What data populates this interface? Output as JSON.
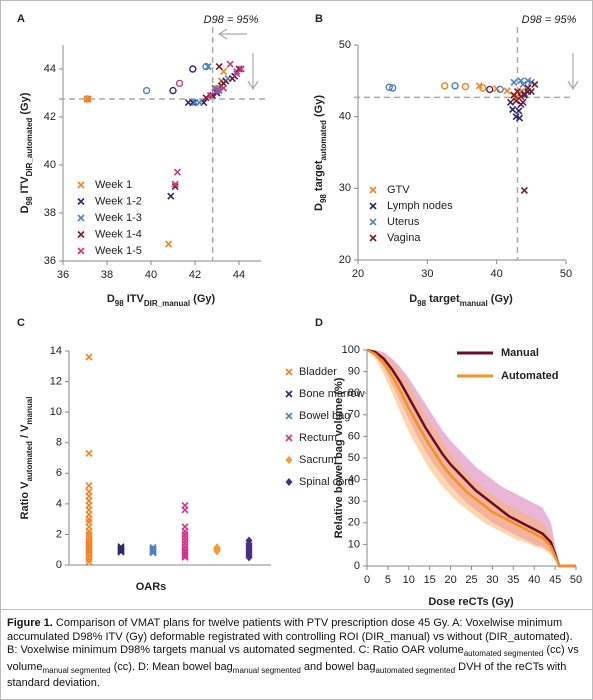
{
  "chart_data": [
    {
      "type": "scatter",
      "label": "A",
      "annotation": "D98 = 95%",
      "vline": 42.8,
      "hline": 42.75,
      "xlabel": [
        {
          "text": "D"
        },
        {
          "text": "98",
          "sub": true
        },
        {
          "text": " ITV"
        },
        {
          "text": "DIR_manual",
          "sub": true
        },
        {
          "text": " (Gy)"
        }
      ],
      "ylabel": [
        {
          "text": "D"
        },
        {
          "text": "98",
          "sub": true
        },
        {
          "text": " ITV"
        },
        {
          "text": "DIR_automated",
          "sub": true
        },
        {
          "text": " (Gy)"
        }
      ],
      "xlim": [
        36,
        45
      ],
      "xticks": [
        36,
        38,
        40,
        42,
        44
      ],
      "ylim": [
        36,
        45
      ],
      "yticks": [
        36,
        38,
        40,
        42,
        44
      ],
      "series": [
        {
          "name": "Week 1",
          "color": "#f58220",
          "x": [
            37.1,
            37.15,
            43.3,
            43.2,
            40.8,
            43.0
          ],
          "y": [
            42.75,
            42.75,
            43.9,
            43.5,
            36.7,
            43.2
          ],
          "circle_x": [
            37.1
          ],
          "circle_y": [
            42.75
          ]
        },
        {
          "name": "Week 1-2",
          "color": "#2b2b6e",
          "x": [
            40.9,
            41.7,
            41.9,
            42.4,
            43.0,
            43.4,
            43.8,
            43.2
          ],
          "y": [
            38.7,
            42.6,
            42.6,
            42.6,
            43.0,
            43.5,
            43.7,
            43.3
          ],
          "circle_x": [
            41.0,
            41.9
          ],
          "circle_y": [
            43.1,
            44.0
          ]
        },
        {
          "name": "Week 1-3",
          "color": "#4f81bd",
          "x": [
            42.6,
            42.2,
            42.9,
            43.5,
            43.9,
            43.1,
            42.0
          ],
          "y": [
            44.1,
            42.6,
            43.2,
            43.6,
            43.9,
            43.1,
            42.6
          ],
          "circle_x": [
            39.8,
            42.5
          ],
          "circle_y": [
            43.1,
            44.1
          ]
        },
        {
          "name": "Week 1-4",
          "color": "#7a1c2e",
          "x": [
            41.1,
            43.1,
            42.5,
            43.3,
            43.7,
            44.0,
            42.8
          ],
          "y": [
            39.1,
            44.1,
            42.8,
            43.4,
            43.6,
            44.0,
            42.9
          ],
          "circle_x": [],
          "circle_y": []
        },
        {
          "name": "Week 1-5",
          "color": "#d2378c",
          "x": [
            41.2,
            41.1,
            43.6,
            43.3,
            43.9,
            44.1,
            42.7,
            43.0
          ],
          "y": [
            39.7,
            39.2,
            44.2,
            43.2,
            43.8,
            44.0,
            42.9,
            43.1
          ],
          "circle_x": [
            41.3
          ],
          "circle_y": [
            43.4
          ]
        }
      ]
    },
    {
      "type": "scatter",
      "label": "B",
      "annotation": "D98 = 95%",
      "vline": 43,
      "hline": 42.7,
      "xlabel": [
        {
          "text": "D"
        },
        {
          "text": "98",
          "sub": true
        },
        {
          "text": " target"
        },
        {
          "text": "manual",
          "sub": true
        },
        {
          "text": " (Gy)"
        }
      ],
      "ylabel": [
        {
          "text": "D"
        },
        {
          "text": "98",
          "sub": true
        },
        {
          "text": " target"
        },
        {
          "text": "automated",
          "sub": true
        },
        {
          "text": " (Gy)"
        }
      ],
      "xlim": [
        20,
        50
      ],
      "xticks": [
        20,
        30,
        40,
        50
      ],
      "ylim": [
        20,
        50
      ],
      "yticks": [
        20,
        30,
        40,
        50
      ],
      "series": [
        {
          "name": "GTV",
          "color": "#f58220",
          "x": [
            37.5,
            40,
            41.5,
            42.4,
            43.5,
            44.5,
            43
          ],
          "y": [
            44.3,
            43.9,
            43.6,
            43,
            43.5,
            44,
            42.8
          ],
          "circle_x": [
            32.5,
            35.5,
            38
          ],
          "circle_y": [
            44.3,
            44.2,
            44
          ]
        },
        {
          "name": "Lymph nodes",
          "color": "#2b2b6e",
          "x": [
            42.3,
            42.8,
            43.2,
            42,
            43.5,
            44,
            44.5,
            43.3
          ],
          "y": [
            41,
            40,
            40.8,
            42,
            41.7,
            43,
            43.5,
            39.8
          ],
          "circle_x": [],
          "circle_y": []
        },
        {
          "name": "Uterus",
          "color": "#4f81bd",
          "x": [
            42.5,
            43.5,
            44.5,
            45,
            43.8
          ],
          "y": [
            44.8,
            45,
            45,
            44.8,
            44.5
          ],
          "circle_x": [
            24.5,
            25,
            34,
            40.5
          ],
          "circle_y": [
            44.1,
            44,
            44.3,
            43.8
          ]
        },
        {
          "name": "Vagina",
          "color": "#7a1c2e",
          "x": [
            44,
            42.5,
            43,
            43.5,
            44,
            44.5,
            45,
            42.8,
            43.8,
            45.5
          ],
          "y": [
            29.7,
            43,
            43.5,
            42.8,
            43.2,
            44,
            43.5,
            42.2,
            42,
            44.5
          ],
          "circle_x": [
            39
          ],
          "circle_y": [
            43.8
          ]
        }
      ]
    },
    {
      "type": "strip",
      "label": "C",
      "xlabel": [
        {
          "text": "OARs"
        }
      ],
      "ylabel": [
        {
          "text": "Ratio V"
        },
        {
          "text": "automated",
          "sub": true
        },
        {
          "text": " / V"
        },
        {
          "text": "manual",
          "sub": true
        }
      ],
      "ylim": [
        0,
        14
      ],
      "yticks": [
        0,
        2,
        4,
        6,
        8,
        10,
        12,
        14
      ],
      "series": [
        {
          "name": "Bladder",
          "color": "#f58220",
          "marker": "x",
          "values": [
            13.6,
            7.3,
            5.2,
            4.8,
            4.5,
            4.2,
            3.9,
            3.6,
            3.3,
            3,
            2.8,
            2.5,
            2.2,
            2,
            1.8,
            1.6,
            1.4,
            1.3,
            1.2,
            1.1,
            1,
            0.9,
            0.8,
            0.6,
            0.4,
            0.2
          ]
        },
        {
          "name": "Bone marrow",
          "color": "#2b2b6e",
          "marker": "x",
          "values": [
            1.2,
            1.1,
            1.05,
            1,
            0.95,
            0.9,
            0.85
          ]
        },
        {
          "name": "Bowel bag",
          "color": "#4f81bd",
          "marker": "x",
          "values": [
            1.15,
            1.05,
            1,
            0.95,
            0.9,
            0.85,
            0.8
          ]
        },
        {
          "name": "Rectum",
          "color": "#d2378c",
          "marker": "x",
          "values": [
            3.9,
            3.6,
            2.5,
            2.2,
            2,
            1.8,
            1.6,
            1.4,
            1.2,
            1,
            0.9,
            0.8,
            0.7,
            0.6,
            0.5
          ]
        },
        {
          "name": "Sacrum",
          "color": "#f79a2e",
          "marker": "diamond",
          "values": [
            1.15,
            1.1,
            1.05,
            1,
            0.95,
            0.9
          ]
        },
        {
          "name": "Spinal cord",
          "color": "#4b2d83",
          "marker": "diamond",
          "values": [
            1.6,
            1.4,
            1.3,
            1.2,
            1.1,
            1,
            0.9,
            0.8,
            0.7,
            0.6,
            0.5
          ]
        }
      ]
    },
    {
      "type": "line",
      "label": "D",
      "xlabel": [
        {
          "text": "Dose reCTs (Gy)"
        }
      ],
      "ylabel": [
        {
          "text": "Relative bowel bag volume (%)"
        }
      ],
      "xlim": [
        0,
        50
      ],
      "xticks": [
        0,
        5,
        10,
        15,
        20,
        25,
        30,
        35,
        40,
        45,
        50
      ],
      "ylim": [
        0,
        100
      ],
      "yticks": [
        0,
        10,
        20,
        30,
        40,
        50,
        60,
        70,
        80,
        90,
        100
      ],
      "x": [
        0,
        2,
        4,
        6,
        8,
        10,
        12,
        14,
        16,
        18,
        20,
        22,
        24,
        26,
        28,
        30,
        32,
        34,
        36,
        38,
        40,
        42,
        44,
        46,
        48,
        50
      ],
      "series": [
        {
          "name": "Manual",
          "color": "#6b0d25",
          "band_color": "#d77ab8",
          "values": [
            100,
            99,
            96,
            91,
            85,
            78,
            71,
            64,
            58,
            52,
            47,
            43,
            39,
            35,
            32,
            29,
            26,
            23,
            21,
            19,
            17,
            15,
            11,
            0,
            0,
            0
          ],
          "lower": [
            100,
            97,
            92,
            84,
            76,
            68,
            60,
            53,
            47,
            42,
            37,
            33,
            29,
            26,
            23,
            20,
            18,
            16,
            14,
            12,
            10,
            9,
            6,
            0,
            0,
            0
          ],
          "upper": [
            100,
            100,
            99,
            96,
            92,
            87,
            81,
            75,
            69,
            63,
            58,
            54,
            50,
            46,
            43,
            40,
            37,
            35,
            33,
            31,
            29,
            27,
            20,
            0,
            0,
            0
          ]
        },
        {
          "name": "Automated",
          "color": "#f7901e",
          "band_color": "#fbb36e",
          "values": [
            100,
            98,
            94,
            88,
            81,
            73,
            66,
            59,
            53,
            47,
            42,
            38,
            34,
            31,
            28,
            25,
            23,
            21,
            19,
            17,
            15,
            13,
            9,
            0,
            0,
            0
          ],
          "lower": [
            100,
            96,
            89,
            80,
            71,
            62,
            55,
            48,
            42,
            37,
            33,
            29,
            26,
            23,
            20,
            18,
            16,
            14,
            12,
            11,
            9,
            8,
            5,
            0,
            0,
            0
          ],
          "upper": [
            100,
            100,
            98,
            95,
            90,
            84,
            77,
            70,
            64,
            58,
            52,
            47,
            43,
            39,
            36,
            33,
            30,
            28,
            26,
            24,
            22,
            20,
            14,
            0,
            0,
            0
          ]
        }
      ]
    }
  ],
  "caption": [
    {
      "text": "Figure 1.",
      "bold": true
    },
    {
      "text": " Comparison of VMAT plans for twelve patients with PTV prescription dose 45 Gy. A: Voxelwise minimum accumulated D98% ITV (Gy) deformable registrated with controlling ROI (DIR_manual) vs without (DIR_automated).  B: Voxelwise minimum D98% targets manual vs automated segmented.  C: Ratio OAR volume"
    },
    {
      "text": "automated segmented",
      "sub": true
    },
    {
      "text": " (cc) vs volume"
    },
    {
      "text": "manual segmented",
      "sub": true
    },
    {
      "text": " (cc). D: Mean bowel bag"
    },
    {
      "text": "manual segmented",
      "sub": true
    },
    {
      "text": " and bowel bag"
    },
    {
      "text": "automated segmented",
      "sub": true
    },
    {
      "text": " DVH of the reCTs with standard deviation."
    }
  ]
}
